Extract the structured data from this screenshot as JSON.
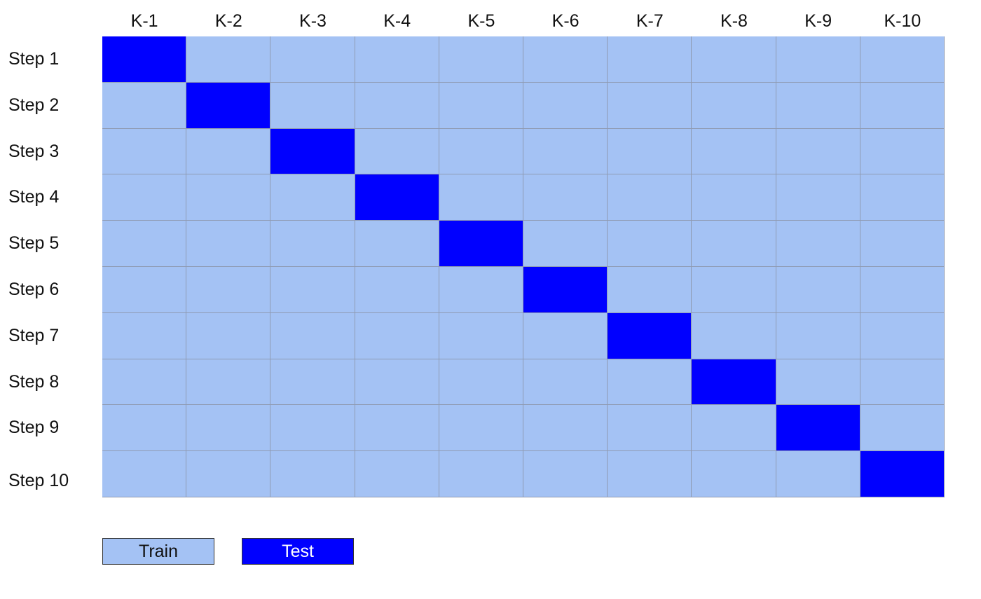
{
  "columns": [
    "K-1",
    "K-2",
    "K-3",
    "K-4",
    "K-5",
    "K-6",
    "K-7",
    "K-8",
    "K-9",
    "K-10"
  ],
  "rows": [
    "Step 1",
    "Step 2",
    "Step 3",
    "Step 4",
    "Step 5",
    "Step 6",
    "Step 7",
    "Step 8",
    "Step 9",
    "Step 10"
  ],
  "test_fold_per_step": [
    1,
    2,
    3,
    4,
    5,
    6,
    7,
    8,
    9,
    10
  ],
  "legend": {
    "train_label": "Train",
    "test_label": "Test"
  },
  "colors": {
    "train": "#a4c2f4",
    "test": "#0000ff",
    "train_text": "#111111",
    "test_text": "#ffffff"
  }
}
